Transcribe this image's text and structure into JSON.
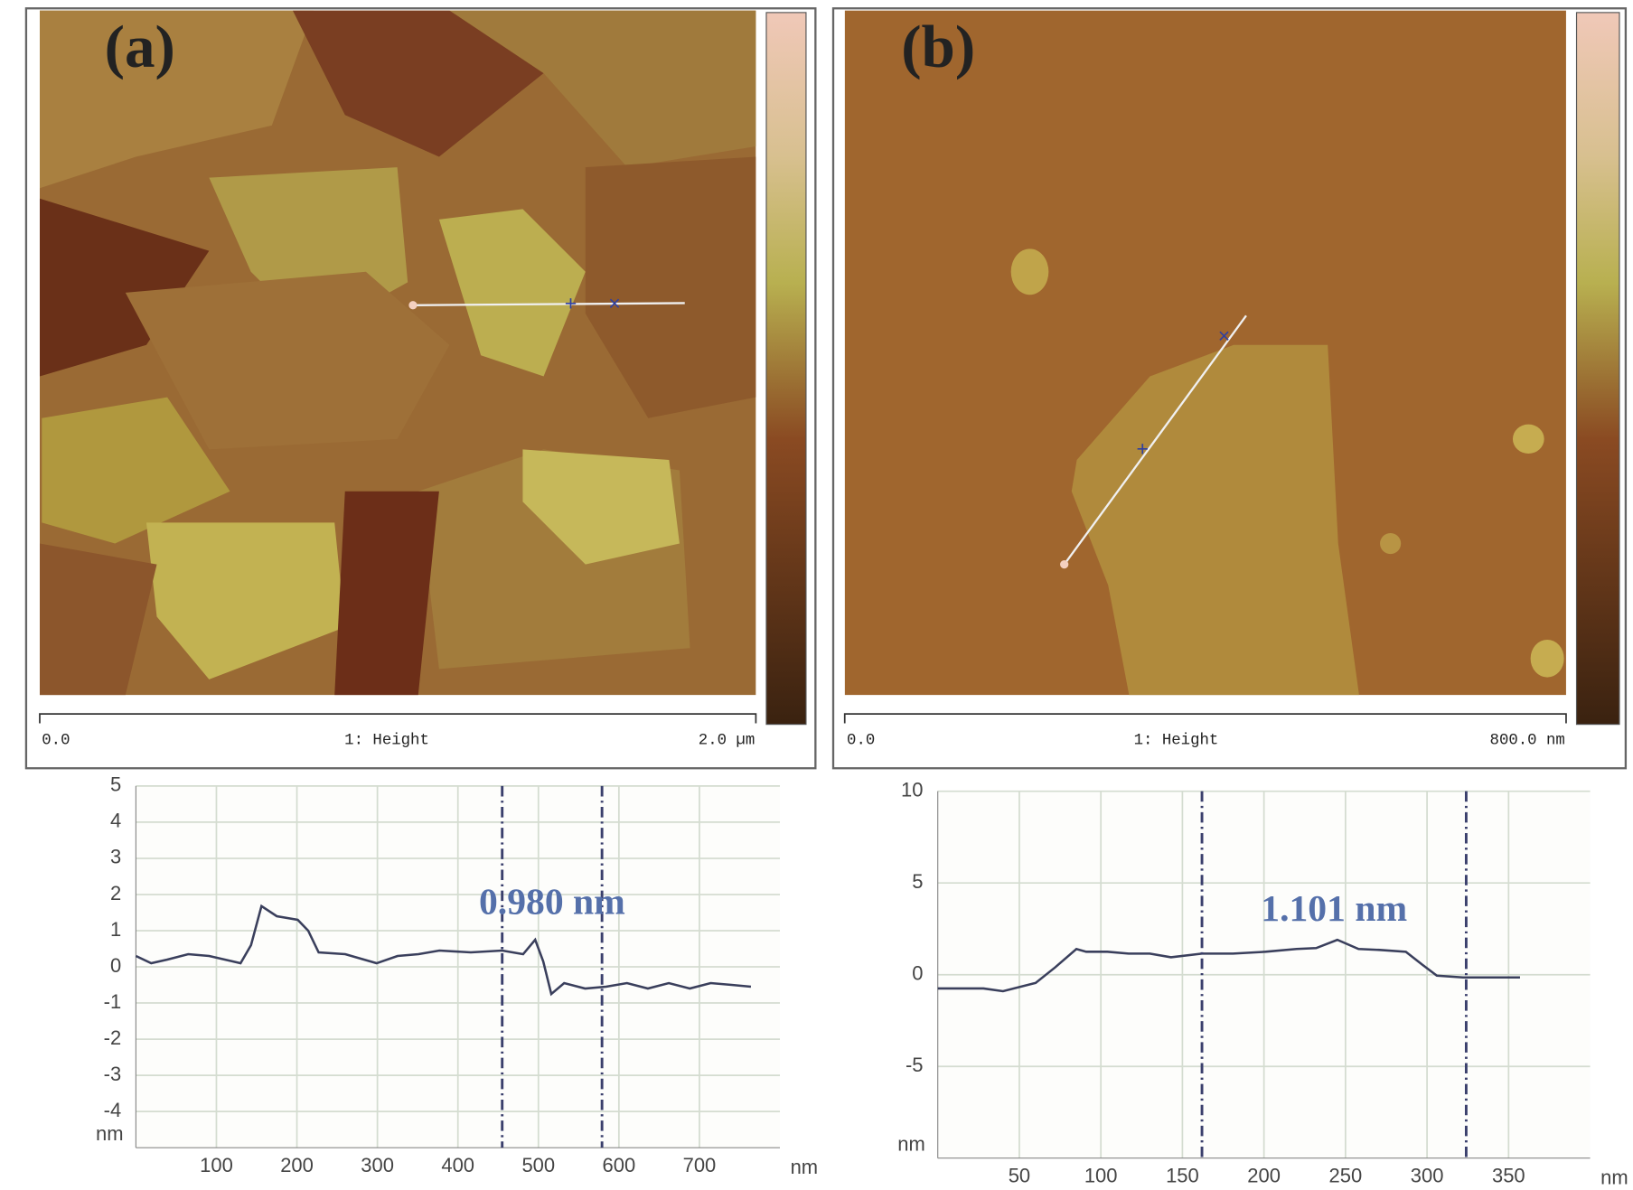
{
  "images": [
    {
      "label": "(a)",
      "scale_start": "0.0",
      "channel": "1: Height",
      "scale_end": "2.0 µm"
    },
    {
      "label": "(b)",
      "scale_start": "0.0",
      "channel": "1: Height",
      "scale_end": "800.0 nm"
    }
  ],
  "chart_data": [
    {
      "type": "line",
      "x_label": "nm",
      "y_label": "nm",
      "annotation": "0.980 nm",
      "xlim": [
        0,
        800
      ],
      "xticks": [
        100,
        200,
        300,
        400,
        500,
        600,
        700
      ],
      "ylim": [
        -5,
        5
      ],
      "yticks": [
        -4,
        -3,
        -2,
        -1,
        0,
        1,
        2,
        3,
        4,
        5
      ],
      "grid": true,
      "cursors": [
        455,
        579
      ],
      "color": "#3a3f5c",
      "x": [
        0,
        19,
        39,
        65,
        91,
        130,
        143,
        156,
        175,
        201,
        214,
        227,
        260,
        299,
        325,
        351,
        377,
        416,
        455,
        481,
        496,
        506,
        516,
        532,
        558,
        584,
        610,
        636,
        662,
        688,
        714,
        740,
        764
      ],
      "values": [
        0.3,
        0.1,
        0.2,
        0.35,
        0.3,
        0.1,
        0.6,
        1.68,
        1.4,
        1.3,
        1.0,
        0.4,
        0.35,
        0.1,
        0.3,
        0.35,
        0.45,
        0.4,
        0.45,
        0.35,
        0.75,
        0.15,
        -0.75,
        -0.45,
        -0.6,
        -0.55,
        -0.45,
        -0.6,
        -0.45,
        -0.6,
        -0.45,
        -0.5,
        -0.55
      ]
    },
    {
      "type": "line",
      "x_label": "nm",
      "y_label": "nm",
      "annotation": "1.101 nm",
      "xlim": [
        0,
        400
      ],
      "xticks": [
        50,
        100,
        150,
        200,
        250,
        300,
        350
      ],
      "ylim": [
        -10,
        10
      ],
      "yticks": [
        -5,
        0,
        5,
        10
      ],
      "grid": true,
      "cursors": [
        162,
        324
      ],
      "color": "#3a3f5c",
      "x": [
        0,
        28,
        40,
        60,
        72,
        85,
        91,
        104,
        117,
        130,
        143,
        162,
        181,
        201,
        220,
        232,
        245,
        258,
        271,
        287,
        297,
        306,
        322,
        341,
        357
      ],
      "values": [
        -0.75,
        -0.75,
        -0.9,
        -0.45,
        0.4,
        1.4,
        1.25,
        1.25,
        1.15,
        1.15,
        0.95,
        1.15,
        1.15,
        1.25,
        1.4,
        1.45,
        1.9,
        1.4,
        1.35,
        1.25,
        0.55,
        -0.05,
        -0.15,
        -0.15,
        -0.15
      ]
    }
  ]
}
